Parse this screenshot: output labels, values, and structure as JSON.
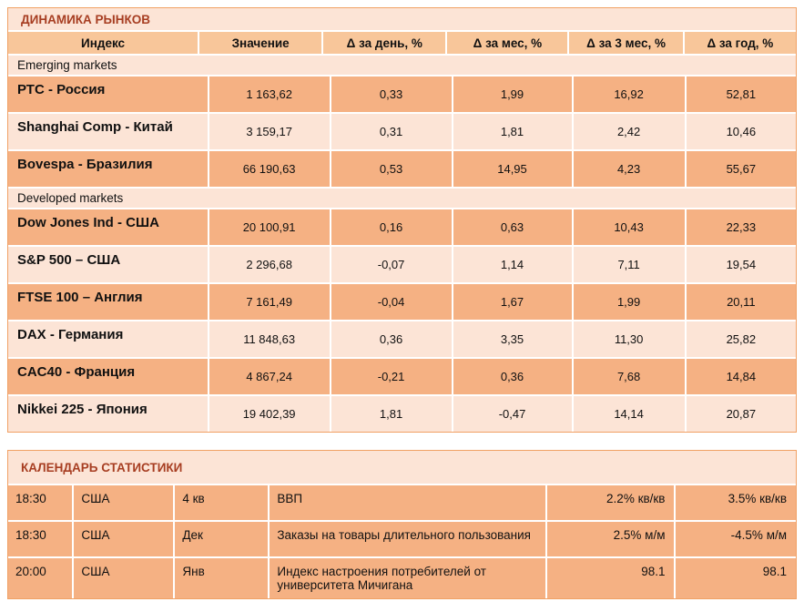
{
  "colors": {
    "title_text": "#a73e22",
    "title_bg": "#fce4d6",
    "header_bg": "#f8c69a",
    "row_dark": "#f5b183",
    "row_light": "#fce4d6",
    "border": "#f1a164"
  },
  "markets": {
    "title": "ДИНАМИКА РЫНКОВ",
    "columns": [
      "Индекс",
      "Значение",
      "Δ за день, %",
      "Δ за мес, %",
      "Δ за 3 мес, %",
      "Δ за год, %"
    ],
    "groups": [
      {
        "label": "Emerging markets",
        "rows": [
          {
            "name": "РТС - Россия",
            "value": "1 163,62",
            "d_day": "0,33",
            "d_month": "1,99",
            "d_3month": "16,92",
            "d_year": "52,81"
          },
          {
            "name": "Shanghai Comp - Китай",
            "value": "3 159,17",
            "d_day": "0,31",
            "d_month": "1,81",
            "d_3month": "2,42",
            "d_year": "10,46"
          },
          {
            "name": "Bovespa - Бразилия",
            "value": "66 190,63",
            "d_day": "0,53",
            "d_month": "14,95",
            "d_3month": "4,23",
            "d_year": "55,67"
          }
        ]
      },
      {
        "label": "Developed markets",
        "rows": [
          {
            "name": "Dow Jones Ind - США",
            "value": "20 100,91",
            "d_day": "0,16",
            "d_month": "0,63",
            "d_3month": "10,43",
            "d_year": "22,33"
          },
          {
            "name": "S&P 500 – США",
            "value": "2 296,68",
            "d_day": "-0,07",
            "d_month": "1,14",
            "d_3month": "7,11",
            "d_year": "19,54"
          },
          {
            "name": "FTSE 100 – Англия",
            "value": "7 161,49",
            "d_day": "-0,04",
            "d_month": "1,67",
            "d_3month": "1,99",
            "d_year": "20,11"
          },
          {
            "name": "DAX - Германия",
            "value": "11 848,63",
            "d_day": "0,36",
            "d_month": "3,35",
            "d_3month": "11,30",
            "d_year": "25,82"
          },
          {
            "name": "CAC40 - Франция",
            "value": "4 867,24",
            "d_day": "-0,21",
            "d_month": "0,36",
            "d_3month": "7,68",
            "d_year": "14,84"
          },
          {
            "name": "Nikkei 225 - Япония",
            "value": "19 402,39",
            "d_day": "1,81",
            "d_month": "-0,47",
            "d_3month": "14,14",
            "d_year": "20,87"
          }
        ]
      }
    ]
  },
  "calendar": {
    "title": "КАЛЕНДАРЬ СТАТИСТИКИ",
    "rows": [
      {
        "time": "18:30",
        "country": "США",
        "period": "4 кв",
        "indicator": "ВВП",
        "forecast": "2.2% кв/кв",
        "previous": "3.5% кв/кв"
      },
      {
        "time": "18:30",
        "country": "США",
        "period": "Дек",
        "indicator": "Заказы на товары длительного пользования",
        "forecast": "2.5% м/м",
        "previous": "-4.5% м/м"
      },
      {
        "time": "20:00",
        "country": "США",
        "period": "Янв",
        "indicator": "Индекс настроения потребителей  от университета Мичигана",
        "forecast": "98.1",
        "previous": "98.1"
      }
    ]
  }
}
